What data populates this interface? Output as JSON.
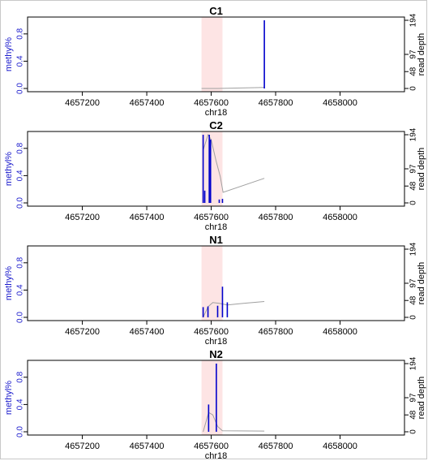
{
  "chart_data": {
    "type": "bar",
    "left_axis_label": "methyl%",
    "right_axis_label": "read depth",
    "x_label": "chr18",
    "x_ticks": [
      "4657200",
      "4657400",
      "4657600",
      "4657800",
      "4658000"
    ],
    "x_tick_values": [
      4657200,
      4657400,
      4657600,
      4657800,
      4658000
    ],
    "x_range": [
      4657030,
      4658200
    ],
    "left_ticks": [
      "0.0",
      "0.4",
      "0.8"
    ],
    "left_tick_values": [
      0,
      0.4,
      0.8
    ],
    "left_range": [
      0,
      1.0
    ],
    "right_ticks": [
      "0",
      "48",
      "97",
      "194"
    ],
    "right_tick_values": [
      0,
      48,
      97,
      194
    ],
    "right_range": [
      0,
      194
    ],
    "highlight_region": [
      4657570,
      4657635
    ],
    "colors": {
      "bars": "#0000cc",
      "highlight": "#fde4e4",
      "depth_line": "#a0a0a0",
      "axis_labels": "#1a1acc"
    },
    "grid": false,
    "panels": [
      {
        "title": "C1",
        "methylation": [
          {
            "x": 4657765,
            "y": 1.0
          }
        ],
        "read_depth": [
          {
            "x": 4657570,
            "y": 0
          },
          {
            "x": 4657620,
            "y": 0
          },
          {
            "x": 4657765,
            "y": 3
          }
        ]
      },
      {
        "title": "C2",
        "methylation": [
          {
            "x": 4657575,
            "y": 1.0
          },
          {
            "x": 4657580,
            "y": 0.18
          },
          {
            "x": 4657594,
            "y": 1.0
          },
          {
            "x": 4657598,
            "y": 0.93
          },
          {
            "x": 4657625,
            "y": 0.05
          },
          {
            "x": 4657635,
            "y": 0.06
          }
        ],
        "read_depth": [
          {
            "x": 4657575,
            "y": 150
          },
          {
            "x": 4657590,
            "y": 194
          },
          {
            "x": 4657600,
            "y": 180
          },
          {
            "x": 4657615,
            "y": 120
          },
          {
            "x": 4657628,
            "y": 75
          },
          {
            "x": 4657637,
            "y": 30
          },
          {
            "x": 4657765,
            "y": 70
          }
        ]
      },
      {
        "title": "N1",
        "methylation": [
          {
            "x": 4657575,
            "y": 0.15
          },
          {
            "x": 4657590,
            "y": 0.16
          },
          {
            "x": 4657620,
            "y": 0.17
          },
          {
            "x": 4657635,
            "y": 0.45
          },
          {
            "x": 4657650,
            "y": 0.22
          }
        ],
        "read_depth": [
          {
            "x": 4657575,
            "y": 0
          },
          {
            "x": 4657590,
            "y": 30
          },
          {
            "x": 4657605,
            "y": 42
          },
          {
            "x": 4657625,
            "y": 40
          },
          {
            "x": 4657650,
            "y": 35
          },
          {
            "x": 4657700,
            "y": 40
          },
          {
            "x": 4657765,
            "y": 45
          }
        ]
      },
      {
        "title": "N2",
        "methylation": [
          {
            "x": 4657592,
            "y": 0.4
          },
          {
            "x": 4657616,
            "y": 1.0
          }
        ],
        "read_depth": [
          {
            "x": 4657575,
            "y": 0
          },
          {
            "x": 4657592,
            "y": 55
          },
          {
            "x": 4657605,
            "y": 48
          },
          {
            "x": 4657620,
            "y": 15
          },
          {
            "x": 4657635,
            "y": 3
          },
          {
            "x": 4657765,
            "y": 2
          }
        ]
      }
    ]
  }
}
